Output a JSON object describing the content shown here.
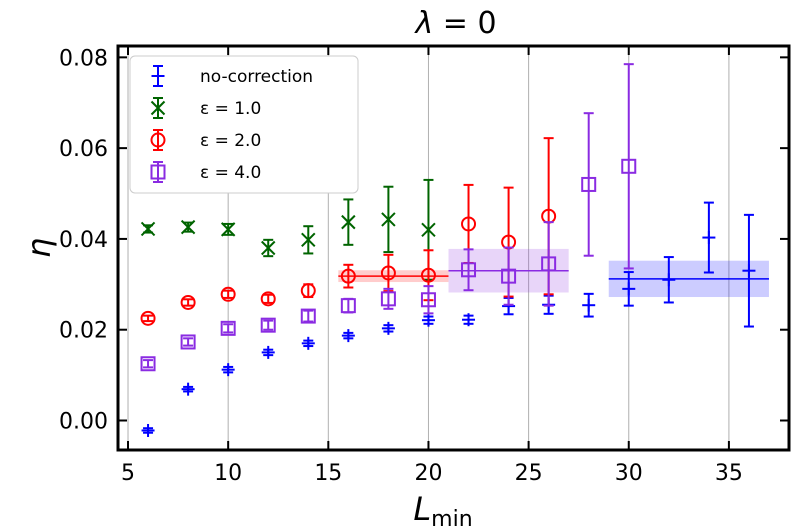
{
  "chart_data": {
    "type": "scatter",
    "title": "λ = 0",
    "title_parts": {
      "symbol": "λ",
      "rest": " = 0"
    },
    "xlabel": "L",
    "xlabel_sub": "min",
    "ylabel": "η",
    "xlim": [
      4.5,
      38.0
    ],
    "ylim": [
      -0.0065,
      0.0825
    ],
    "xticks": [
      5,
      10,
      15,
      20,
      25,
      30,
      35
    ],
    "yticks": [
      0.0,
      0.02,
      0.04,
      0.06,
      0.08
    ],
    "ytick_labels": [
      "0.00",
      "0.02",
      "0.04",
      "0.06",
      "0.08"
    ],
    "xtick_labels": [
      "5",
      "10",
      "15",
      "20",
      "25",
      "30",
      "35"
    ],
    "grid": "vertical",
    "legend_position": "top-left",
    "series": [
      {
        "name": "no-correction",
        "marker": "plus",
        "color": "#0000ff",
        "points": [
          {
            "x": 6,
            "y": -0.0022,
            "err": 0.0005
          },
          {
            "x": 8,
            "y": 0.0069,
            "err": 0.0005
          },
          {
            "x": 10,
            "y": 0.0112,
            "err": 0.0006
          },
          {
            "x": 12,
            "y": 0.015,
            "err": 0.0006
          },
          {
            "x": 14,
            "y": 0.017,
            "err": 0.0006
          },
          {
            "x": 16,
            "y": 0.0187,
            "err": 0.0006
          },
          {
            "x": 18,
            "y": 0.0203,
            "err": 0.0007
          },
          {
            "x": 20,
            "y": 0.0221,
            "err": 0.0008
          },
          {
            "x": 22,
            "y": 0.0222,
            "err": 0.0009
          },
          {
            "x": 24,
            "y": 0.0252,
            "err": 0.0018
          },
          {
            "x": 26,
            "y": 0.0255,
            "err": 0.002
          },
          {
            "x": 28,
            "y": 0.0254,
            "err": 0.0025
          },
          {
            "x": 30,
            "y": 0.029,
            "err": 0.0037
          },
          {
            "x": 32,
            "y": 0.031,
            "err": 0.005
          },
          {
            "x": 34,
            "y": 0.0403,
            "err": 0.0077
          },
          {
            "x": 36,
            "y": 0.033,
            "err": 0.0123
          }
        ]
      },
      {
        "name": "ε = 1.0",
        "marker": "x",
        "color": "#006400",
        "points": [
          {
            "x": 6,
            "y": 0.0422,
            "err": 0.0008
          },
          {
            "x": 8,
            "y": 0.0426,
            "err": 0.001
          },
          {
            "x": 10,
            "y": 0.0421,
            "err": 0.0012
          },
          {
            "x": 12,
            "y": 0.038,
            "err": 0.0018
          },
          {
            "x": 14,
            "y": 0.0398,
            "err": 0.003
          },
          {
            "x": 16,
            "y": 0.0437,
            "err": 0.005
          },
          {
            "x": 18,
            "y": 0.0443,
            "err": 0.0072
          },
          {
            "x": 20,
            "y": 0.042,
            "err": 0.011
          }
        ]
      },
      {
        "name": "ε = 2.0",
        "marker": "circle",
        "color": "#ff0000",
        "points": [
          {
            "x": 6,
            "y": 0.0225,
            "err": 0.0006
          },
          {
            "x": 8,
            "y": 0.026,
            "err": 0.0007
          },
          {
            "x": 10,
            "y": 0.0278,
            "err": 0.0008
          },
          {
            "x": 12,
            "y": 0.0268,
            "err": 0.0009
          },
          {
            "x": 14,
            "y": 0.0286,
            "err": 0.0014
          },
          {
            "x": 16,
            "y": 0.0318,
            "err": 0.0025
          },
          {
            "x": 18,
            "y": 0.0325,
            "err": 0.004
          },
          {
            "x": 20,
            "y": 0.032,
            "err": 0.0055
          },
          {
            "x": 22,
            "y": 0.0433,
            "err": 0.0086
          },
          {
            "x": 24,
            "y": 0.0393,
            "err": 0.012
          },
          {
            "x": 26,
            "y": 0.045,
            "err": 0.0172
          }
        ]
      },
      {
        "name": "ε = 4.0",
        "marker": "square",
        "color": "#8a2be2",
        "points": [
          {
            "x": 6,
            "y": 0.0125,
            "err": 0.0008
          },
          {
            "x": 8,
            "y": 0.0173,
            "err": 0.0008
          },
          {
            "x": 10,
            "y": 0.0203,
            "err": 0.0009
          },
          {
            "x": 12,
            "y": 0.021,
            "err": 0.001
          },
          {
            "x": 14,
            "y": 0.023,
            "err": 0.0012
          },
          {
            "x": 16,
            "y": 0.0253,
            "err": 0.0015
          },
          {
            "x": 18,
            "y": 0.0268,
            "err": 0.0022
          },
          {
            "x": 20,
            "y": 0.0266,
            "err": 0.003
          },
          {
            "x": 22,
            "y": 0.0332,
            "err": 0.0045
          },
          {
            "x": 24,
            "y": 0.0318,
            "err": 0.0063
          },
          {
            "x": 26,
            "y": 0.0345,
            "err": 0.0092
          },
          {
            "x": 28,
            "y": 0.052,
            "err": 0.0157
          },
          {
            "x": 30,
            "y": 0.056,
            "err": 0.0225
          }
        ]
      }
    ],
    "bands": [
      {
        "color": "#ff0000",
        "x_start": 15.5,
        "x_end": 21.0,
        "y": 0.0318,
        "halfwidth": 0.0013
      },
      {
        "color": "#8a2be2",
        "x_start": 21.0,
        "x_end": 27.0,
        "y": 0.033,
        "halfwidth": 0.0048
      },
      {
        "color": "#0000ff",
        "x_start": 29.0,
        "x_end": 37.0,
        "y": 0.0312,
        "halfwidth": 0.004
      }
    ]
  }
}
